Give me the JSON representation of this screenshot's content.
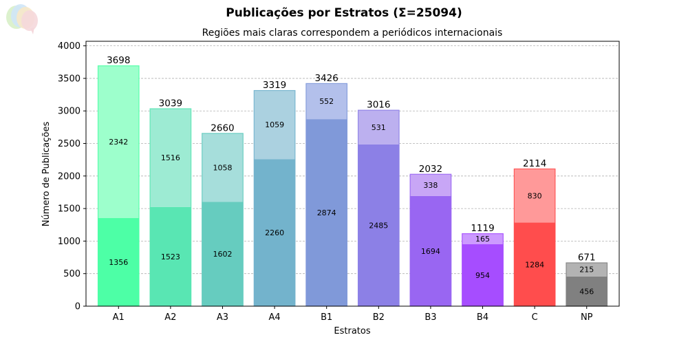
{
  "chart_data": {
    "type": "bar",
    "stacked": true,
    "title": "Publicações por Estratos (Σ=25094)",
    "subtitle": "Regiões mais claras correspondem a periódicos internacionais",
    "xlabel": "Estratos",
    "ylabel": "Número de Publicações",
    "ylim": [
      0,
      4070
    ],
    "yticks": [
      0,
      500,
      1000,
      1500,
      2000,
      2500,
      3000,
      3500,
      4000
    ],
    "grid": "horizontal-dashed",
    "categories": [
      "A1",
      "A2",
      "A3",
      "A4",
      "B1",
      "B2",
      "B3",
      "B4",
      "C",
      "NP"
    ],
    "series": [
      {
        "values": [
          1356,
          1523,
          1602,
          2260,
          2874,
          2485,
          1694,
          954,
          1284,
          456
        ],
        "colors": [
          "#4dffa6",
          "#59e6b3",
          "#66ccbf",
          "#73b3cc",
          "#8099d9",
          "#8c80e6",
          "#9966f2",
          "#a64dff",
          "#ff4d4d",
          "#808080"
        ]
      },
      {
        "values": [
          2342,
          1516,
          1058,
          1059,
          552,
          531,
          338,
          165,
          830,
          215
        ],
        "colors": [
          "#9dffcc",
          "#9debd3",
          "#a6dedb",
          "#abd1e0",
          "#b3c0eb",
          "#bcb0ef",
          "#c8a6f6",
          "#cc99ff",
          "#ff9999",
          "#b3b3b3"
        ]
      }
    ],
    "totals": [
      3698,
      3039,
      2660,
      3319,
      3426,
      3016,
      2032,
      1119,
      2114,
      671
    ]
  }
}
